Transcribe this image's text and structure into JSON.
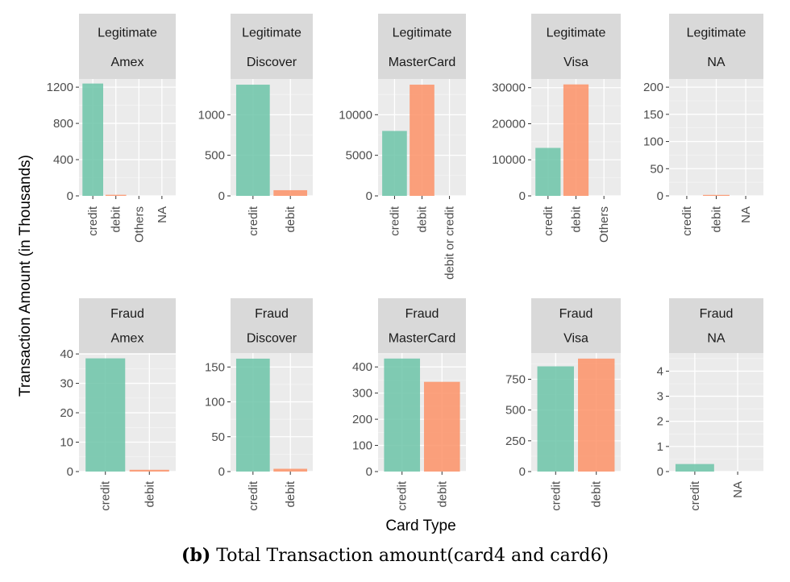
{
  "figure": {
    "ylabel": "Transaction Amount (in Thousands)",
    "xlabel": "Card Type",
    "caption_label": "(b)",
    "caption_text": "Total Transaction amount(card4 and card6)"
  },
  "colors": {
    "credit": "#66c2a5",
    "debit": "#fc8d62",
    "panel": "#ebebeb",
    "strip": "#d9d9d9"
  },
  "chart_data": [
    {
      "type": "bar",
      "strip": [
        "Legitimate",
        "Amex"
      ],
      "categories": [
        "credit",
        "debit",
        "Others",
        "NA"
      ],
      "values": [
        1240,
        12,
        0,
        0
      ],
      "ylim": [
        0,
        1290
      ],
      "yticks": [
        0,
        400,
        800,
        1200
      ]
    },
    {
      "type": "bar",
      "strip": [
        "Legitimate",
        "Discover"
      ],
      "categories": [
        "credit",
        "debit"
      ],
      "values": [
        1370,
        70
      ],
      "ylim": [
        0,
        1440
      ],
      "yticks": [
        0,
        500,
        1000
      ]
    },
    {
      "type": "bar",
      "strip": [
        "Legitimate",
        "MasterCard"
      ],
      "categories": [
        "credit",
        "debit",
        "debit or credit"
      ],
      "values": [
        8000,
        13700,
        0
      ],
      "ylim": [
        0,
        14400
      ],
      "yticks": [
        0,
        5000,
        10000
      ]
    },
    {
      "type": "bar",
      "strip": [
        "Legitimate",
        "Visa"
      ],
      "categories": [
        "credit",
        "debit",
        "Others"
      ],
      "values": [
        13300,
        30900,
        0
      ],
      "ylim": [
        0,
        32400
      ],
      "yticks": [
        0,
        10000,
        20000,
        30000
      ]
    },
    {
      "type": "bar",
      "strip": [
        "Legitimate",
        "NA"
      ],
      "categories": [
        "credit",
        "debit",
        "NA"
      ],
      "values": [
        0,
        0.5,
        0
      ],
      "ylim": [
        0,
        215
      ],
      "yticks": [
        0,
        50,
        100,
        150,
        200
      ]
    },
    {
      "type": "bar",
      "strip": [
        "Fraud",
        "Amex"
      ],
      "categories": [
        "credit",
        "debit"
      ],
      "values": [
        38.5,
        0.6
      ],
      "ylim": [
        0,
        40.3
      ],
      "yticks": [
        0,
        10,
        20,
        30,
        40
      ]
    },
    {
      "type": "bar",
      "strip": [
        "Fraud",
        "Discover"
      ],
      "categories": [
        "credit",
        "debit"
      ],
      "values": [
        162,
        4
      ],
      "ylim": [
        0,
        170
      ],
      "yticks": [
        0,
        50,
        100,
        150
      ]
    },
    {
      "type": "bar",
      "strip": [
        "Fraud",
        "MasterCard"
      ],
      "categories": [
        "credit",
        "debit"
      ],
      "values": [
        432,
        343
      ],
      "ylim": [
        0,
        453
      ],
      "yticks": [
        0,
        100,
        200,
        300,
        400
      ]
    },
    {
      "type": "bar",
      "strip": [
        "Fraud",
        "Visa"
      ],
      "categories": [
        "credit",
        "debit"
      ],
      "values": [
        855,
        918
      ],
      "ylim": [
        0,
        963
      ],
      "yticks": [
        0,
        250,
        500,
        750
      ]
    },
    {
      "type": "bar",
      "strip": [
        "Fraud",
        "NA"
      ],
      "categories": [
        "credit",
        "NA"
      ],
      "values": [
        0.3,
        0
      ],
      "ylim": [
        0,
        4.72
      ],
      "yticks": [
        0,
        1,
        2,
        3,
        4
      ]
    }
  ]
}
